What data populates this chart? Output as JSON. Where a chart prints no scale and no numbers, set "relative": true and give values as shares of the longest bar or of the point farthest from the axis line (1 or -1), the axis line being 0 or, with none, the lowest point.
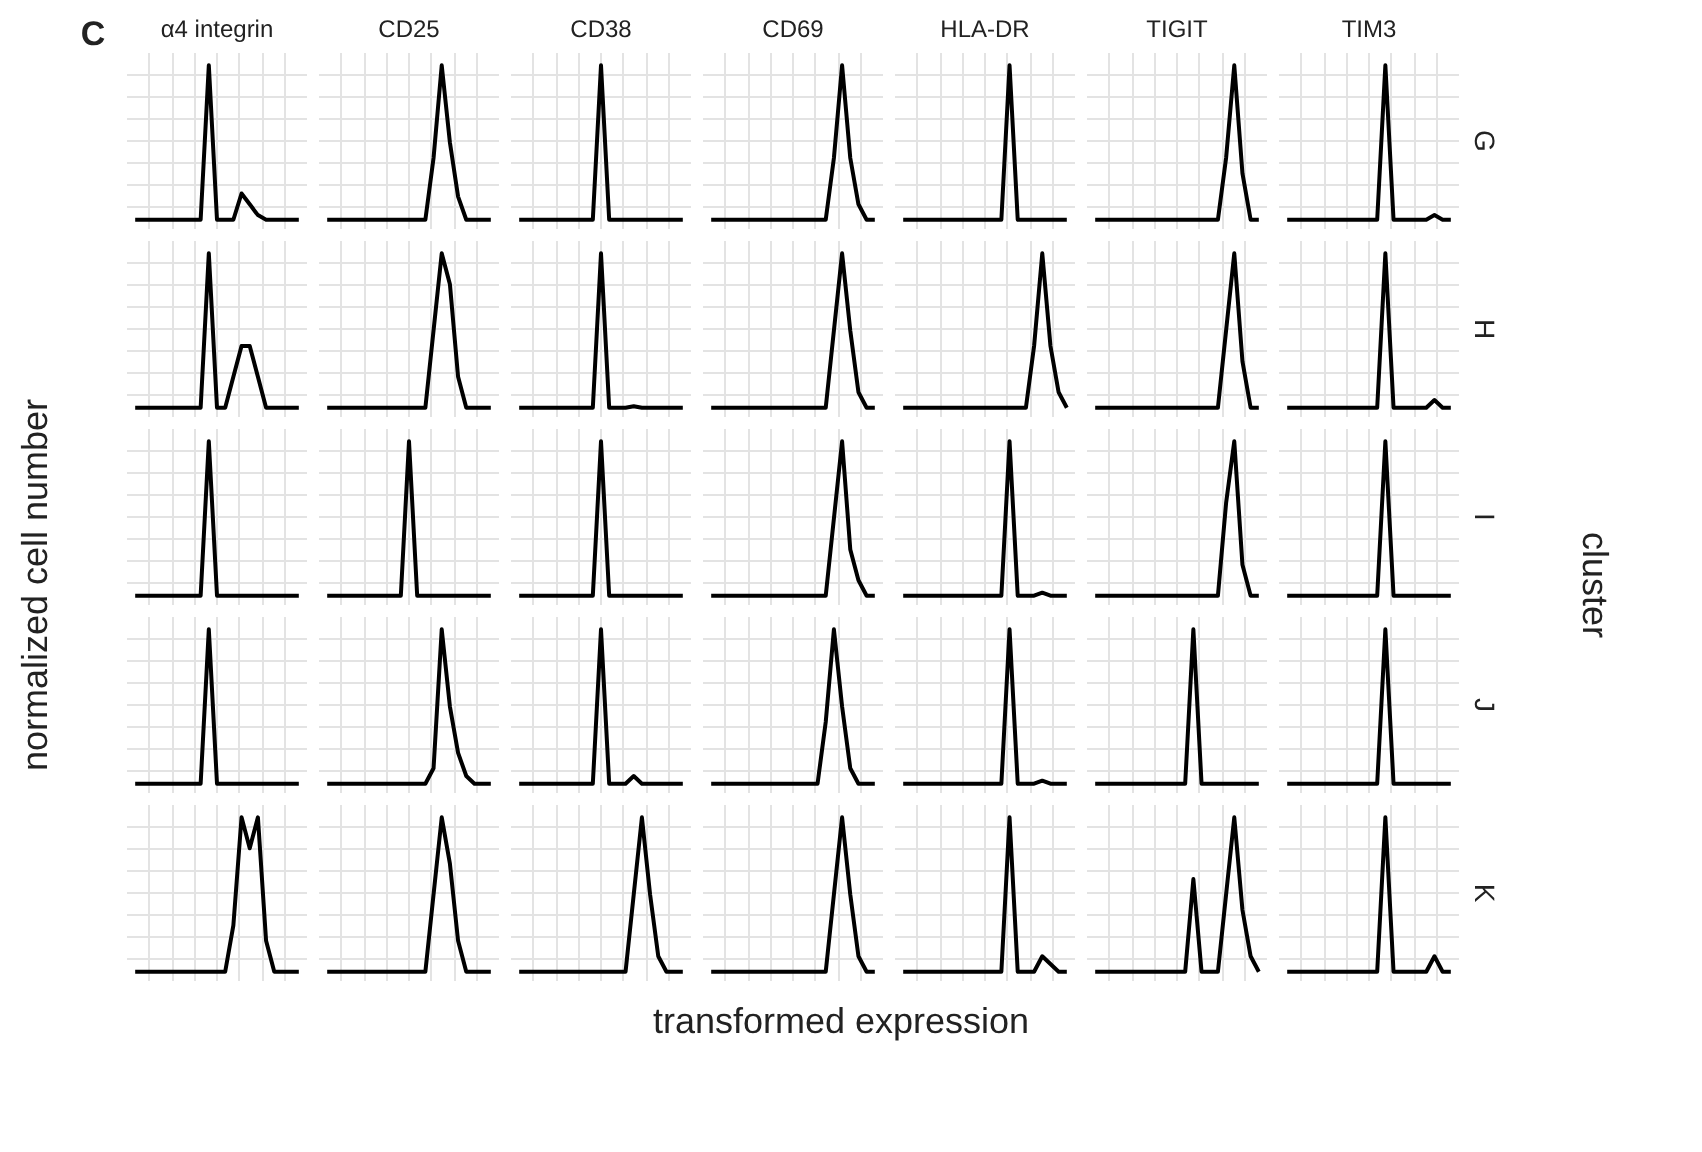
{
  "chart_data": [
    {
      "type": "other",
      "title": "C",
      "xlabel": "transformed expression",
      "ylabel": "normalized cell number",
      "y2label": "cluster"
    },
    {
      "type": "line",
      "relative": true,
      "title": "α4 integrin",
      "categories": [
        null,
        null,
        null,
        null,
        null,
        null,
        null,
        null,
        null,
        null,
        null,
        null,
        null,
        null,
        null,
        null,
        null,
        null,
        null,
        null,
        null
      ],
      "values": [
        0,
        0,
        0,
        0,
        0,
        0,
        0,
        0,
        0,
        1,
        0,
        0,
        0,
        0.17,
        0.1,
        0.03,
        0,
        0,
        0,
        0,
        0
      ],
      "color": "#000000",
      "grid": true,
      "tick_labels": false
    },
    {
      "type": "line",
      "relative": true,
      "title": "CD25",
      "categories": [
        null,
        null,
        null,
        null,
        null,
        null,
        null,
        null,
        null,
        null,
        null,
        null,
        null,
        null,
        null,
        null,
        null,
        null,
        null,
        null,
        null
      ],
      "values": [
        0,
        0,
        0,
        0,
        0,
        0,
        0,
        0,
        0,
        0,
        0,
        0,
        0,
        0.4,
        1,
        0.5,
        0.15,
        0,
        0,
        0,
        0
      ],
      "color": "#000000",
      "grid": true,
      "tick_labels": false
    },
    {
      "type": "line",
      "relative": true,
      "title": "CD38",
      "categories": [
        null,
        null,
        null,
        null,
        null,
        null,
        null,
        null,
        null,
        null,
        null,
        null,
        null,
        null,
        null,
        null,
        null,
        null,
        null,
        null,
        null
      ],
      "values": [
        0,
        0,
        0,
        0,
        0,
        0,
        0,
        0,
        0,
        0,
        1,
        0,
        0,
        0,
        0,
        0,
        0,
        0,
        0,
        0,
        0
      ],
      "color": "#000000",
      "grid": true,
      "tick_labels": false
    },
    {
      "type": "line",
      "relative": true,
      "title": "CD69",
      "categories": [
        null,
        null,
        null,
        null,
        null,
        null,
        null,
        null,
        null,
        null,
        null,
        null,
        null,
        null,
        null,
        null,
        null,
        null,
        null,
        null,
        null
      ],
      "values": [
        0,
        0,
        0,
        0,
        0,
        0,
        0,
        0,
        0,
        0,
        0,
        0,
        0,
        0,
        0,
        0.4,
        1,
        0.4,
        0.1,
        0,
        0
      ],
      "color": "#000000",
      "grid": true,
      "tick_labels": false
    },
    {
      "type": "line",
      "relative": true,
      "title": "HLA-DR",
      "categories": [
        null,
        null,
        null,
        null,
        null,
        null,
        null,
        null,
        null,
        null,
        null,
        null,
        null,
        null,
        null,
        null,
        null,
        null,
        null,
        null,
        null
      ],
      "values": [
        0,
        0,
        0,
        0,
        0,
        0,
        0,
        0,
        0,
        0,
        0,
        0,
        0,
        1,
        0,
        0,
        0,
        0,
        0,
        0,
        0
      ],
      "color": "#000000",
      "grid": true,
      "tick_labels": false
    },
    {
      "type": "line",
      "relative": true,
      "title": "TIGIT",
      "categories": [
        null,
        null,
        null,
        null,
        null,
        null,
        null,
        null,
        null,
        null,
        null,
        null,
        null,
        null,
        null,
        null,
        null,
        null,
        null,
        null,
        null
      ],
      "values": [
        0,
        0,
        0,
        0,
        0,
        0,
        0,
        0,
        0,
        0,
        0,
        0,
        0,
        0,
        0,
        0,
        0.4,
        1,
        0.3,
        0,
        0
      ],
      "color": "#000000",
      "grid": true,
      "tick_labels": false
    },
    {
      "type": "line",
      "relative": true,
      "title": "TIM3",
      "y2label": "G",
      "categories": [
        null,
        null,
        null,
        null,
        null,
        null,
        null,
        null,
        null,
        null,
        null,
        null,
        null,
        null,
        null,
        null,
        null,
        null,
        null,
        null,
        null
      ],
      "values": [
        0,
        0,
        0,
        0,
        0,
        0,
        0,
        0,
        0,
        0,
        0,
        0,
        1,
        0,
        0,
        0,
        0,
        0,
        0.03,
        0,
        0
      ],
      "color": "#000000",
      "grid": true,
      "tick_labels": false
    },
    {
      "type": "line",
      "relative": true,
      "categories": [
        null,
        null,
        null,
        null,
        null,
        null,
        null,
        null,
        null,
        null,
        null,
        null,
        null,
        null,
        null,
        null,
        null,
        null,
        null,
        null,
        null
      ],
      "values": [
        0,
        0,
        0,
        0,
        0,
        0,
        0,
        0,
        0,
        1,
        0,
        0,
        0.2,
        0.4,
        0.4,
        0.2,
        0,
        0,
        0,
        0,
        0
      ],
      "color": "#000000",
      "grid": true,
      "tick_labels": false
    },
    {
      "type": "line",
      "relative": true,
      "categories": [
        null,
        null,
        null,
        null,
        null,
        null,
        null,
        null,
        null,
        null,
        null,
        null,
        null,
        null,
        null,
        null,
        null,
        null,
        null,
        null,
        null
      ],
      "values": [
        0,
        0,
        0,
        0,
        0,
        0,
        0,
        0,
        0,
        0,
        0,
        0,
        0,
        0.5,
        1,
        0.8,
        0.2,
        0,
        0,
        0,
        0
      ],
      "color": "#000000",
      "grid": true,
      "tick_labels": false
    },
    {
      "type": "line",
      "relative": true,
      "categories": [
        null,
        null,
        null,
        null,
        null,
        null,
        null,
        null,
        null,
        null,
        null,
        null,
        null,
        null,
        null,
        null,
        null,
        null,
        null,
        null,
        null
      ],
      "values": [
        0,
        0,
        0,
        0,
        0,
        0,
        0,
        0,
        0,
        0,
        1,
        0,
        0,
        0,
        0.01,
        0,
        0,
        0,
        0,
        0,
        0
      ],
      "color": "#000000",
      "grid": true,
      "tick_labels": false
    },
    {
      "type": "line",
      "relative": true,
      "categories": [
        null,
        null,
        null,
        null,
        null,
        null,
        null,
        null,
        null,
        null,
        null,
        null,
        null,
        null,
        null,
        null,
        null,
        null,
        null,
        null,
        null
      ],
      "values": [
        0,
        0,
        0,
        0,
        0,
        0,
        0,
        0,
        0,
        0,
        0,
        0,
        0,
        0,
        0,
        0.5,
        1,
        0.5,
        0.1,
        0,
        0
      ],
      "color": "#000000",
      "grid": true,
      "tick_labels": false
    },
    {
      "type": "line",
      "relative": true,
      "categories": [
        null,
        null,
        null,
        null,
        null,
        null,
        null,
        null,
        null,
        null,
        null,
        null,
        null,
        null,
        null,
        null,
        null,
        null,
        null,
        null,
        null
      ],
      "values": [
        0,
        0,
        0,
        0,
        0,
        0,
        0,
        0,
        0,
        0,
        0,
        0,
        0,
        0,
        0,
        0,
        0.4,
        1,
        0.4,
        0.1,
        0
      ],
      "color": "#000000",
      "grid": true,
      "tick_labels": false
    },
    {
      "type": "line",
      "relative": true,
      "categories": [
        null,
        null,
        null,
        null,
        null,
        null,
        null,
        null,
        null,
        null,
        null,
        null,
        null,
        null,
        null,
        null,
        null,
        null,
        null,
        null,
        null
      ],
      "values": [
        0,
        0,
        0,
        0,
        0,
        0,
        0,
        0,
        0,
        0,
        0,
        0,
        0,
        0,
        0,
        0,
        0.5,
        1,
        0.3,
        0,
        0
      ],
      "color": "#000000",
      "grid": true,
      "tick_labels": false
    },
    {
      "type": "line",
      "relative": true,
      "y2label": "H",
      "categories": [
        null,
        null,
        null,
        null,
        null,
        null,
        null,
        null,
        null,
        null,
        null,
        null,
        null,
        null,
        null,
        null,
        null,
        null,
        null,
        null,
        null
      ],
      "values": [
        0,
        0,
        0,
        0,
        0,
        0,
        0,
        0,
        0,
        0,
        0,
        0,
        1,
        0,
        0,
        0,
        0,
        0,
        0.05,
        0,
        0
      ],
      "color": "#000000",
      "grid": true,
      "tick_labels": false
    },
    {
      "type": "line",
      "relative": true,
      "categories": [
        null,
        null,
        null,
        null,
        null,
        null,
        null,
        null,
        null,
        null,
        null,
        null,
        null,
        null,
        null,
        null,
        null,
        null,
        null,
        null,
        null
      ],
      "values": [
        0,
        0,
        0,
        0,
        0,
        0,
        0,
        0,
        0,
        1,
        0,
        0,
        0,
        0,
        0,
        0,
        0,
        0,
        0,
        0,
        0
      ],
      "color": "#000000",
      "grid": true,
      "tick_labels": false
    },
    {
      "type": "line",
      "relative": true,
      "categories": [
        null,
        null,
        null,
        null,
        null,
        null,
        null,
        null,
        null,
        null,
        null,
        null,
        null,
        null,
        null,
        null,
        null,
        null,
        null,
        null,
        null
      ],
      "values": [
        0,
        0,
        0,
        0,
        0,
        0,
        0,
        0,
        0,
        0,
        1,
        0,
        0,
        0,
        0,
        0,
        0,
        0,
        0,
        0,
        0
      ],
      "color": "#000000",
      "grid": true,
      "tick_labels": false
    },
    {
      "type": "line",
      "relative": true,
      "categories": [
        null,
        null,
        null,
        null,
        null,
        null,
        null,
        null,
        null,
        null,
        null,
        null,
        null,
        null,
        null,
        null,
        null,
        null,
        null,
        null,
        null
      ],
      "values": [
        0,
        0,
        0,
        0,
        0,
        0,
        0,
        0,
        0,
        0,
        1,
        0,
        0,
        0,
        0,
        0,
        0,
        0,
        0,
        0,
        0
      ],
      "color": "#000000",
      "grid": true,
      "tick_labels": false
    },
    {
      "type": "line",
      "relative": true,
      "categories": [
        null,
        null,
        null,
        null,
        null,
        null,
        null,
        null,
        null,
        null,
        null,
        null,
        null,
        null,
        null,
        null,
        null,
        null,
        null,
        null,
        null
      ],
      "values": [
        0,
        0,
        0,
        0,
        0,
        0,
        0,
        0,
        0,
        0,
        0,
        0,
        0,
        0,
        0,
        0.5,
        1,
        0.3,
        0.1,
        0,
        0
      ],
      "color": "#000000",
      "grid": true,
      "tick_labels": false
    },
    {
      "type": "line",
      "relative": true,
      "categories": [
        null,
        null,
        null,
        null,
        null,
        null,
        null,
        null,
        null,
        null,
        null,
        null,
        null,
        null,
        null,
        null,
        null,
        null,
        null,
        null,
        null
      ],
      "values": [
        0,
        0,
        0,
        0,
        0,
        0,
        0,
        0,
        0,
        0,
        0,
        0,
        0,
        1,
        0,
        0,
        0,
        0.02,
        0,
        0,
        0
      ],
      "color": "#000000",
      "grid": true,
      "tick_labels": false
    },
    {
      "type": "line",
      "relative": true,
      "categories": [
        null,
        null,
        null,
        null,
        null,
        null,
        null,
        null,
        null,
        null,
        null,
        null,
        null,
        null,
        null,
        null,
        null,
        null,
        null,
        null,
        null
      ],
      "values": [
        0,
        0,
        0,
        0,
        0,
        0,
        0,
        0,
        0,
        0,
        0,
        0,
        0,
        0,
        0,
        0,
        0.6,
        1,
        0.2,
        0,
        0
      ],
      "color": "#000000",
      "grid": true,
      "tick_labels": false
    },
    {
      "type": "line",
      "relative": true,
      "y2label": "I",
      "categories": [
        null,
        null,
        null,
        null,
        null,
        null,
        null,
        null,
        null,
        null,
        null,
        null,
        null,
        null,
        null,
        null,
        null,
        null,
        null,
        null,
        null
      ],
      "values": [
        0,
        0,
        0,
        0,
        0,
        0,
        0,
        0,
        0,
        0,
        0,
        0,
        1,
        0,
        0,
        0,
        0,
        0,
        0,
        0,
        0
      ],
      "color": "#000000",
      "grid": true,
      "tick_labels": false
    },
    {
      "type": "line",
      "relative": true,
      "categories": [
        null,
        null,
        null,
        null,
        null,
        null,
        null,
        null,
        null,
        null,
        null,
        null,
        null,
        null,
        null,
        null,
        null,
        null,
        null,
        null,
        null
      ],
      "values": [
        0,
        0,
        0,
        0,
        0,
        0,
        0,
        0,
        0,
        1,
        0,
        0,
        0,
        0,
        0,
        0,
        0,
        0,
        0,
        0,
        0
      ],
      "color": "#000000",
      "grid": true,
      "tick_labels": false
    },
    {
      "type": "line",
      "relative": true,
      "categories": [
        null,
        null,
        null,
        null,
        null,
        null,
        null,
        null,
        null,
        null,
        null,
        null,
        null,
        null,
        null,
        null,
        null,
        null,
        null,
        null,
        null
      ],
      "values": [
        0,
        0,
        0,
        0,
        0,
        0,
        0,
        0,
        0,
        0,
        0,
        0,
        0,
        0.1,
        1,
        0.5,
        0.2,
        0.05,
        0,
        0,
        0
      ],
      "color": "#000000",
      "grid": true,
      "tick_labels": false
    },
    {
      "type": "line",
      "relative": true,
      "categories": [
        null,
        null,
        null,
        null,
        null,
        null,
        null,
        null,
        null,
        null,
        null,
        null,
        null,
        null,
        null,
        null,
        null,
        null,
        null,
        null,
        null
      ],
      "values": [
        0,
        0,
        0,
        0,
        0,
        0,
        0,
        0,
        0,
        0,
        1,
        0,
        0,
        0,
        0.05,
        0,
        0,
        0,
        0,
        0,
        0
      ],
      "color": "#000000",
      "grid": true,
      "tick_labels": false
    },
    {
      "type": "line",
      "relative": true,
      "categories": [
        null,
        null,
        null,
        null,
        null,
        null,
        null,
        null,
        null,
        null,
        null,
        null,
        null,
        null,
        null,
        null,
        null,
        null,
        null,
        null,
        null
      ],
      "values": [
        0,
        0,
        0,
        0,
        0,
        0,
        0,
        0,
        0,
        0,
        0,
        0,
        0,
        0,
        0.4,
        1,
        0.5,
        0.1,
        0,
        0,
        0
      ],
      "color": "#000000",
      "grid": true,
      "tick_labels": false
    },
    {
      "type": "line",
      "relative": true,
      "categories": [
        null,
        null,
        null,
        null,
        null,
        null,
        null,
        null,
        null,
        null,
        null,
        null,
        null,
        null,
        null,
        null,
        null,
        null,
        null,
        null,
        null
      ],
      "values": [
        0,
        0,
        0,
        0,
        0,
        0,
        0,
        0,
        0,
        0,
        0,
        0,
        0,
        1,
        0,
        0,
        0,
        0.02,
        0,
        0,
        0
      ],
      "color": "#000000",
      "grid": true,
      "tick_labels": false
    },
    {
      "type": "line",
      "relative": true,
      "categories": [
        null,
        null,
        null,
        null,
        null,
        null,
        null,
        null,
        null,
        null,
        null,
        null,
        null,
        null,
        null,
        null,
        null,
        null,
        null,
        null,
        null
      ],
      "values": [
        0,
        0,
        0,
        0,
        0,
        0,
        0,
        0,
        0,
        0,
        0,
        0,
        1,
        0,
        0,
        0,
        0,
        0,
        0,
        0,
        0
      ],
      "color": "#000000",
      "grid": true,
      "tick_labels": false
    },
    {
      "type": "line",
      "relative": true,
      "y2label": "J",
      "categories": [
        null,
        null,
        null,
        null,
        null,
        null,
        null,
        null,
        null,
        null,
        null,
        null,
        null,
        null,
        null,
        null,
        null,
        null,
        null,
        null,
        null
      ],
      "values": [
        0,
        0,
        0,
        0,
        0,
        0,
        0,
        0,
        0,
        0,
        0,
        0,
        1,
        0,
        0,
        0,
        0,
        0,
        0,
        0,
        0
      ],
      "color": "#000000",
      "grid": true,
      "tick_labels": false
    },
    {
      "type": "line",
      "relative": true,
      "categories": [
        null,
        null,
        null,
        null,
        null,
        null,
        null,
        null,
        null,
        null,
        null,
        null,
        null,
        null,
        null,
        null,
        null,
        null,
        null,
        null,
        null
      ],
      "values": [
        0,
        0,
        0,
        0,
        0,
        0,
        0,
        0,
        0,
        0,
        0,
        0,
        0.3,
        1,
        0.8,
        1,
        0.2,
        0,
        0,
        0,
        0
      ],
      "color": "#000000",
      "grid": true,
      "tick_labels": false
    },
    {
      "type": "line",
      "relative": true,
      "categories": [
        null,
        null,
        null,
        null,
        null,
        null,
        null,
        null,
        null,
        null,
        null,
        null,
        null,
        null,
        null,
        null,
        null,
        null,
        null,
        null,
        null
      ],
      "values": [
        0,
        0,
        0,
        0,
        0,
        0,
        0,
        0,
        0,
        0,
        0,
        0,
        0,
        0.5,
        1,
        0.7,
        0.2,
        0,
        0,
        0,
        0
      ],
      "color": "#000000",
      "grid": true,
      "tick_labels": false
    },
    {
      "type": "line",
      "relative": true,
      "categories": [
        null,
        null,
        null,
        null,
        null,
        null,
        null,
        null,
        null,
        null,
        null,
        null,
        null,
        null,
        null,
        null,
        null,
        null,
        null,
        null,
        null
      ],
      "values": [
        0,
        0,
        0,
        0,
        0,
        0,
        0,
        0,
        0,
        0,
        0,
        0,
        0,
        0,
        0.5,
        1,
        0.5,
        0.1,
        0,
        0,
        0
      ],
      "color": "#000000",
      "grid": true,
      "tick_labels": false
    },
    {
      "type": "line",
      "relative": true,
      "categories": [
        null,
        null,
        null,
        null,
        null,
        null,
        null,
        null,
        null,
        null,
        null,
        null,
        null,
        null,
        null,
        null,
        null,
        null,
        null,
        null,
        null
      ],
      "values": [
        0,
        0,
        0,
        0,
        0,
        0,
        0,
        0,
        0,
        0,
        0,
        0,
        0,
        0,
        0,
        0.5,
        1,
        0.5,
        0.1,
        0,
        0
      ],
      "color": "#000000",
      "grid": true,
      "tick_labels": false
    },
    {
      "type": "line",
      "relative": true,
      "categories": [
        null,
        null,
        null,
        null,
        null,
        null,
        null,
        null,
        null,
        null,
        null,
        null,
        null,
        null,
        null,
        null,
        null,
        null,
        null,
        null,
        null
      ],
      "values": [
        0,
        0,
        0,
        0,
        0,
        0,
        0,
        0,
        0,
        0,
        0,
        0,
        0,
        1,
        0,
        0,
        0,
        0.1,
        0.05,
        0,
        0
      ],
      "color": "#000000",
      "grid": true,
      "tick_labels": false
    },
    {
      "type": "line",
      "relative": true,
      "categories": [
        null,
        null,
        null,
        null,
        null,
        null,
        null,
        null,
        null,
        null,
        null,
        null,
        null,
        null,
        null,
        null,
        null,
        null,
        null,
        null,
        null
      ],
      "values": [
        0,
        0,
        0,
        0,
        0,
        0,
        0,
        0,
        0,
        0,
        0,
        0,
        0.6,
        0,
        0,
        0,
        0.5,
        1,
        0.4,
        0.1,
        0
      ],
      "color": "#000000",
      "grid": true,
      "tick_labels": false
    },
    {
      "type": "line",
      "relative": true,
      "y2label": "K",
      "categories": [
        null,
        null,
        null,
        null,
        null,
        null,
        null,
        null,
        null,
        null,
        null,
        null,
        null,
        null,
        null,
        null,
        null,
        null,
        null,
        null,
        null
      ],
      "values": [
        0,
        0,
        0,
        0,
        0,
        0,
        0,
        0,
        0,
        0,
        0,
        0,
        1,
        0,
        0,
        0,
        0,
        0,
        0.1,
        0,
        0
      ],
      "color": "#000000",
      "grid": true,
      "tick_labels": false
    }
  ]
}
